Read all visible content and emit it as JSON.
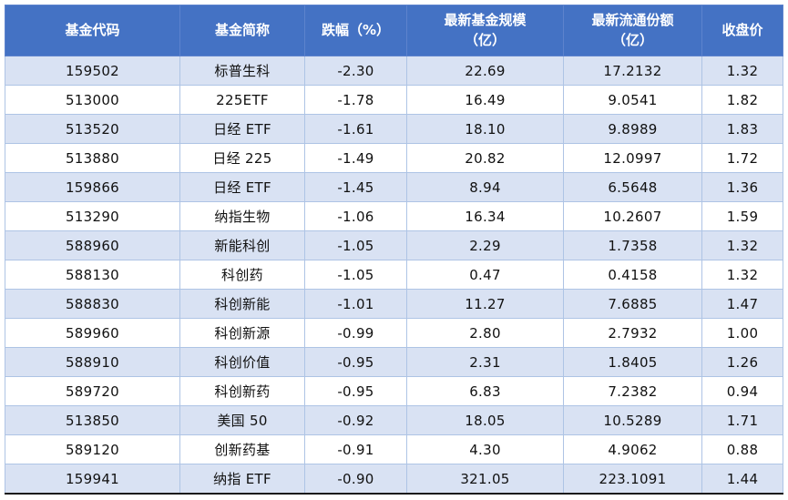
{
  "chart_data": {
    "type": "table",
    "title": "",
    "columns": [
      "基金代码",
      "基金简称",
      "跌幅（%）",
      "最新基金规模（亿）",
      "最新流通份额（亿）",
      "收盘价"
    ],
    "rows": [
      [
        "159502",
        "标普生科",
        "-2.30",
        "22.69",
        "17.2132",
        "1.32"
      ],
      [
        "513000",
        "225ETF",
        "-1.78",
        "16.49",
        "9.0541",
        "1.82"
      ],
      [
        "513520",
        "日经 ETF",
        "-1.61",
        "18.10",
        "9.8989",
        "1.83"
      ],
      [
        "513880",
        "日经 225",
        "-1.49",
        "20.82",
        "12.0997",
        "1.72"
      ],
      [
        "159866",
        "日经 ETF",
        "-1.45",
        "8.94",
        "6.5648",
        "1.36"
      ],
      [
        "513290",
        "纳指生物",
        "-1.06",
        "16.34",
        "10.2607",
        "1.59"
      ],
      [
        "588960",
        "新能科创",
        "-1.05",
        "2.29",
        "1.7358",
        "1.32"
      ],
      [
        "588130",
        "科创药",
        "-1.05",
        "0.47",
        "0.4158",
        "1.32"
      ],
      [
        "588830",
        "科创新能",
        "-1.01",
        "11.27",
        "7.6885",
        "1.47"
      ],
      [
        "589960",
        "科创新源",
        "-0.99",
        "2.80",
        "2.7932",
        "1.00"
      ],
      [
        "588910",
        "科创价值",
        "-0.95",
        "2.31",
        "1.8405",
        "1.26"
      ],
      [
        "589720",
        "科创新药",
        "-0.95",
        "6.83",
        "7.2382",
        "0.94"
      ],
      [
        "513850",
        "美国 50",
        "-0.92",
        "18.05",
        "10.5289",
        "1.71"
      ],
      [
        "589120",
        "创新药基",
        "-0.91",
        "4.30",
        "4.9062",
        "0.88"
      ],
      [
        "159941",
        "纳指 ETF",
        "-0.90",
        "321.05",
        "223.1091",
        "1.44"
      ]
    ]
  },
  "header_display": [
    "基金代码",
    "基金简称",
    "跌幅（%）",
    "最新基金规模\n（亿）",
    "最新流通份额\n（亿）",
    "收盘价"
  ],
  "colors": {
    "header_bg": "#4472C4",
    "header_text": "#FFFFFF",
    "band_row_bg": "#D9E2F3",
    "cell_border": "#AEC4E5",
    "bottom_rule": "#1A1A1A",
    "body_text": "#111111"
  }
}
